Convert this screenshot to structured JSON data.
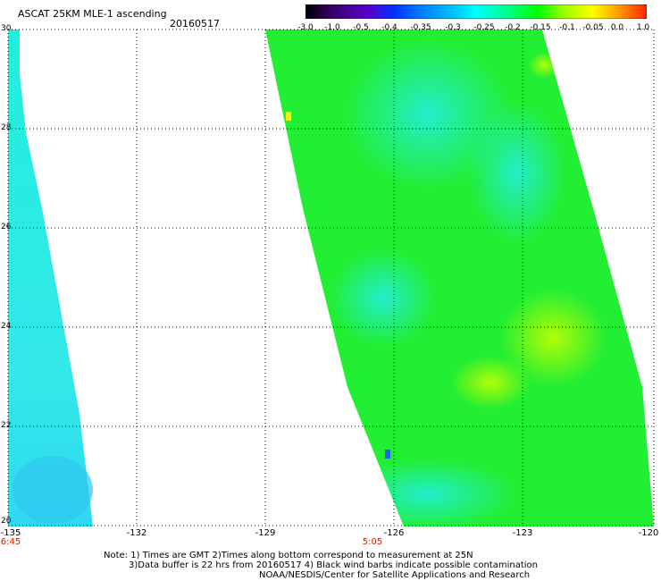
{
  "header": {
    "title": "ASCAT 25KM MLE-1 ascending",
    "date": "20160517"
  },
  "colorbar": {
    "ticks": [
      "-3.0",
      "-1.0",
      "-0.5",
      "-0.4",
      "-0.35",
      "-0.3",
      "-0.25",
      "-0.2",
      "-0.15",
      "-0.1",
      "-0.05",
      "0.0",
      "1.0"
    ],
    "colors": [
      "#000000",
      "#3a006a",
      "#5a00c8",
      "#0030ff",
      "#0080ff",
      "#00b8ff",
      "#00ffff",
      "#00ff80",
      "#00ff00",
      "#a0ff00",
      "#ffff00",
      "#ff9900",
      "#ff2200"
    ]
  },
  "map": {
    "lat_labels": [
      "30",
      "28",
      "26",
      "24",
      "22",
      "20"
    ],
    "lon_labels": [
      "-135",
      "-132",
      "-129",
      "-126",
      "-123",
      "-120"
    ],
    "lat_range": [
      20,
      30
    ],
    "lon_range": [
      -135,
      -120
    ],
    "time_labels": [
      "6:45",
      "5:05"
    ],
    "swath_colors": {
      "green": "#22ee33",
      "cyan": "#22eedd",
      "yellow": "#ccff00",
      "blue": "#2266ee"
    }
  },
  "notes": {
    "line1": "Note: 1) Times are GMT 2)Times along bottom correspond to measurement at 25N",
    "line2": "3)Data buffer is 22 hrs from 20160517 4) Black wind barbs indicate possible contamination",
    "line3": "NOAA/NESDIS/Center for Satellite Applications and Research"
  }
}
